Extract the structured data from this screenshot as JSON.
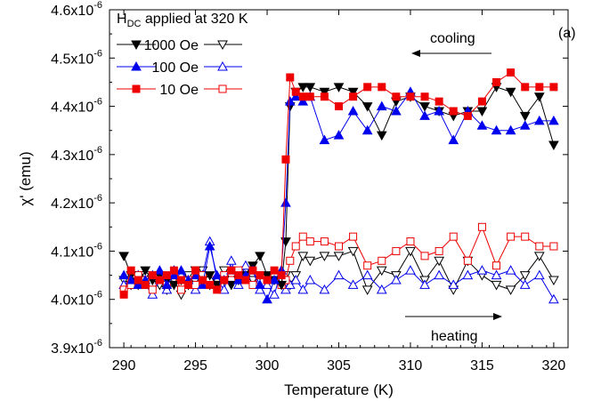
{
  "chart_data": {
    "type": "line",
    "panel_label": "(a)",
    "xlabel": "Temperature (K)",
    "ylabel_main": "χ' (emu)",
    "xlim": [
      289,
      321
    ],
    "ylim": [
      3.9e-06,
      4.6e-06
    ],
    "x_ticks": [
      290,
      295,
      300,
      305,
      310,
      315,
      320
    ],
    "y_ticks": [
      {
        "value": 3.9e-06,
        "mantissa": "3.9x10",
        "exp": "-6"
      },
      {
        "value": 4e-06,
        "mantissa": "4.0x10",
        "exp": "-6"
      },
      {
        "value": 4.1e-06,
        "mantissa": "4.1x10",
        "exp": "-6"
      },
      {
        "value": 4.2e-06,
        "mantissa": "4.2x10",
        "exp": "-6"
      },
      {
        "value": 4.3e-06,
        "mantissa": "4.3x10",
        "exp": "-6"
      },
      {
        "value": 4.4e-06,
        "mantissa": "4.4x10",
        "exp": "-6"
      },
      {
        "value": 4.5e-06,
        "mantissa": "4.5x10",
        "exp": "-6"
      },
      {
        "value": 4.6e-06,
        "mantissa": "4.6x10",
        "exp": "-6"
      }
    ],
    "grid": false,
    "legend": {
      "title_main": "H",
      "title_sub": "DC",
      "title_rest": " applied at 320 K",
      "entries": [
        "1000 Oe",
        "100 Oe",
        "10 Oe"
      ],
      "placement": "top-left"
    },
    "annotations": {
      "cooling": "cooling",
      "heating": "heating"
    },
    "colors": {
      "1000 Oe": "#000000",
      "100 Oe": "#0000ee",
      "10 Oe": "#ee0000"
    },
    "x": [
      290,
      290.5,
      291,
      291.5,
      292,
      292.5,
      293,
      293.5,
      294,
      294.5,
      295,
      295.5,
      296,
      296.5,
      297,
      297.5,
      298,
      298.5,
      299,
      299.5,
      300,
      300.5,
      301,
      301.3,
      301.6,
      302,
      302.5,
      303,
      304,
      305,
      306,
      307,
      308,
      309,
      310,
      311,
      312,
      313,
      314,
      315,
      316,
      317,
      318,
      319,
      320
    ],
    "series": [
      {
        "name": "1000 Oe",
        "branch": "cooling",
        "marker": "triangle-down",
        "filled": true,
        "values": [
          4.09,
          4.05,
          4.03,
          4.06,
          4.04,
          4.05,
          4.04,
          4.03,
          4.04,
          4.03,
          4.06,
          4.04,
          4.05,
          4.03,
          4.04,
          4.03,
          4.04,
          4.05,
          4.07,
          4.09,
          4.05,
          4.04,
          4.03,
          4.12,
          4.4,
          4.43,
          4.44,
          4.44,
          4.43,
          4.44,
          4.43,
          4.4,
          4.34,
          4.41,
          4.42,
          4.4,
          4.39,
          4.38,
          4.39,
          4.39,
          4.44,
          4.43,
          4.38,
          4.42,
          4.32
        ]
      },
      {
        "name": "1000 Oe",
        "branch": "heating",
        "marker": "triangle-down",
        "filled": false,
        "values": [
          4.04,
          4.03,
          4.05,
          4.05,
          4.04,
          4.03,
          4.02,
          4.04,
          4.01,
          4.05,
          4.03,
          4.06,
          4.03,
          4.04,
          4.06,
          4.04,
          4.05,
          4.06,
          4.04,
          4.05,
          4.04,
          4.05,
          4.04,
          4.05,
          4.03,
          4.05,
          4.09,
          4.08,
          4.09,
          4.09,
          4.1,
          4.02,
          4.06,
          4.05,
          4.1,
          4.04,
          4.08,
          4.02,
          4.08,
          4.05,
          4.03,
          4.02,
          4.05,
          4.09,
          4.04
        ]
      },
      {
        "name": "100 Oe",
        "branch": "cooling",
        "marker": "triangle-up",
        "filled": true,
        "values": [
          4.05,
          4.04,
          4.03,
          4.04,
          4.05,
          4.06,
          4.03,
          4.05,
          4.06,
          4.04,
          4.05,
          4.03,
          4.11,
          4.05,
          4.04,
          4.06,
          4.04,
          4.05,
          4.06,
          4.03,
          4.0,
          4.04,
          4.06,
          4.2,
          4.41,
          4.42,
          4.41,
          4.42,
          4.33,
          4.34,
          4.39,
          4.35,
          4.4,
          4.39,
          4.43,
          4.38,
          4.39,
          4.33,
          4.39,
          4.36,
          4.35,
          4.35,
          4.36,
          4.37,
          4.37
        ]
      },
      {
        "name": "100 Oe",
        "branch": "heating",
        "marker": "triangle-up",
        "filled": false,
        "values": [
          4.03,
          4.04,
          4.05,
          4.03,
          4.01,
          4.04,
          4.02,
          4.06,
          4.05,
          4.04,
          4.02,
          4.05,
          4.12,
          4.04,
          4.02,
          4.08,
          4.03,
          4.07,
          4.06,
          4.02,
          4.03,
          4.01,
          4.06,
          4.02,
          4.03,
          4.04,
          4.02,
          4.04,
          4.02,
          4.05,
          4.03,
          4.05,
          4.02,
          4.04,
          4.06,
          4.03,
          4.05,
          4.03,
          4.05,
          4.06,
          4.05,
          4.06,
          4.03,
          4.05,
          4.0
        ]
      },
      {
        "name": "10 Oe",
        "branch": "cooling",
        "marker": "square",
        "filled": true,
        "values": [
          4.01,
          4.06,
          4.04,
          4.03,
          4.05,
          4.04,
          4.05,
          4.06,
          4.04,
          4.03,
          4.06,
          4.04,
          4.03,
          4.02,
          4.04,
          4.06,
          4.05,
          4.04,
          4.06,
          4.05,
          4.04,
          4.06,
          4.05,
          4.29,
          4.46,
          4.43,
          4.42,
          4.42,
          4.42,
          4.4,
          4.42,
          4.44,
          4.44,
          4.42,
          4.42,
          4.42,
          4.41,
          4.39,
          4.38,
          4.41,
          4.45,
          4.47,
          4.44,
          4.44,
          4.44
        ]
      },
      {
        "name": "10 Oe",
        "branch": "heating",
        "marker": "square",
        "filled": false,
        "values": [
          4.02,
          4.03,
          4.05,
          4.04,
          4.02,
          4.04,
          4.03,
          4.05,
          4.02,
          4.04,
          4.03,
          4.05,
          4.04,
          4.03,
          4.05,
          4.04,
          4.06,
          4.04,
          4.03,
          4.05,
          4.04,
          4.05,
          4.03,
          4.04,
          4.08,
          4.11,
          4.13,
          4.12,
          4.12,
          4.11,
          4.13,
          4.07,
          4.08,
          4.1,
          4.12,
          4.09,
          4.1,
          4.13,
          4.08,
          4.15,
          4.07,
          4.13,
          4.13,
          4.11,
          4.11
        ]
      }
    ]
  }
}
